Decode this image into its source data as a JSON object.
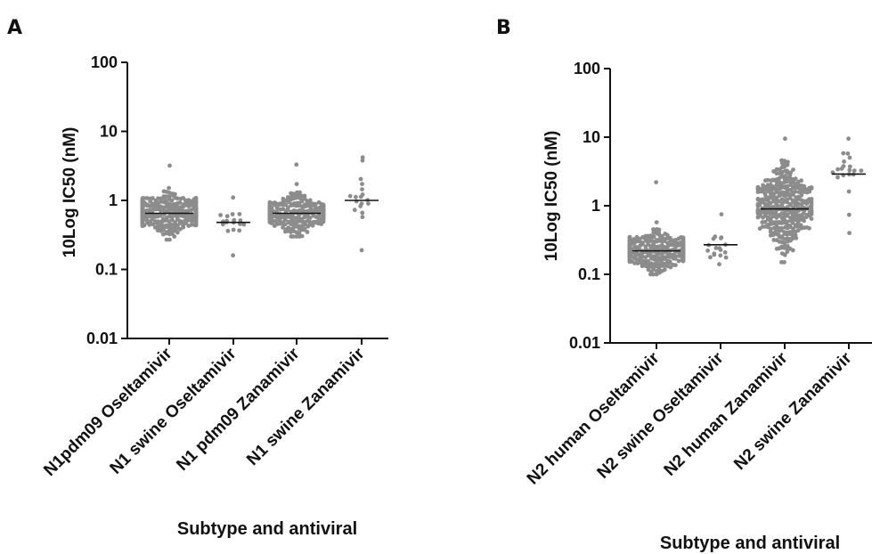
{
  "chart_data": [
    {
      "panel": "A",
      "type": "scatter",
      "subtype": "dot plot (beeswarm) with median line",
      "xlabel": "Subtype and antiviral",
      "ylabel": "10Log IC50 (nM)",
      "yscale": "log",
      "ylim": [
        0.01,
        100
      ],
      "yticks": [
        0.01,
        0.1,
        1,
        10,
        100
      ],
      "ytick_labels": [
        "0.01",
        "0.1",
        "1",
        "10",
        "100"
      ],
      "categories": [
        "N1pdm09 Oseltamivir",
        "N1 swine Oseltamivir",
        "N1 pdm09 Zanamivir",
        "N1 swine Zanamivir"
      ],
      "series": [
        {
          "category": "N1pdm09 Oseltamivir",
          "n_approx": 300,
          "median": 0.65,
          "min": 0.27,
          "max": 3.2
        },
        {
          "category": "N1 swine Oseltamivir",
          "n_approx": 18,
          "median": 0.48,
          "min": 0.16,
          "max": 1.1
        },
        {
          "category": "N1 pdm09 Zanamivir",
          "n_approx": 280,
          "median": 0.65,
          "min": 0.3,
          "max": 3.3
        },
        {
          "category": "N1 swine Zanamivir",
          "n_approx": 18,
          "median": 1.0,
          "min": 0.19,
          "max": 4.2
        }
      ],
      "grid": false,
      "legend": "none"
    },
    {
      "panel": "B",
      "type": "scatter",
      "subtype": "dot plot (beeswarm) with median line",
      "xlabel": "Subtype and antiviral",
      "ylabel": "10Log IC50 (nM)",
      "yscale": "log",
      "ylim": [
        0.01,
        100
      ],
      "yticks": [
        0.01,
        0.1,
        1,
        10,
        100
      ],
      "ytick_labels": [
        "0.01",
        "0.1",
        "1",
        "10",
        "100"
      ],
      "categories": [
        "N2 human Oseltamivir",
        "N2 swine Oseltamivir",
        "N2 human Zanamivir",
        "N2 swine Zanamivir"
      ],
      "series": [
        {
          "category": "N2 human Oseltamivir",
          "n_approx": 320,
          "median": 0.22,
          "min": 0.1,
          "max": 2.2
        },
        {
          "category": "N2 swine Oseltamivir",
          "n_approx": 18,
          "median": 0.27,
          "min": 0.14,
          "max": 0.75
        },
        {
          "category": "N2 human Zanamivir",
          "n_approx": 360,
          "median": 0.9,
          "min": 0.15,
          "max": 9.5
        },
        {
          "category": "N2 swine Zanamivir",
          "n_approx": 20,
          "median": 2.9,
          "min": 0.4,
          "max": 9.5
        }
      ],
      "grid": false,
      "legend": "none"
    }
  ],
  "colors": {
    "points": "#8c8c8c",
    "axes": "#111111",
    "median": "#111111"
  }
}
